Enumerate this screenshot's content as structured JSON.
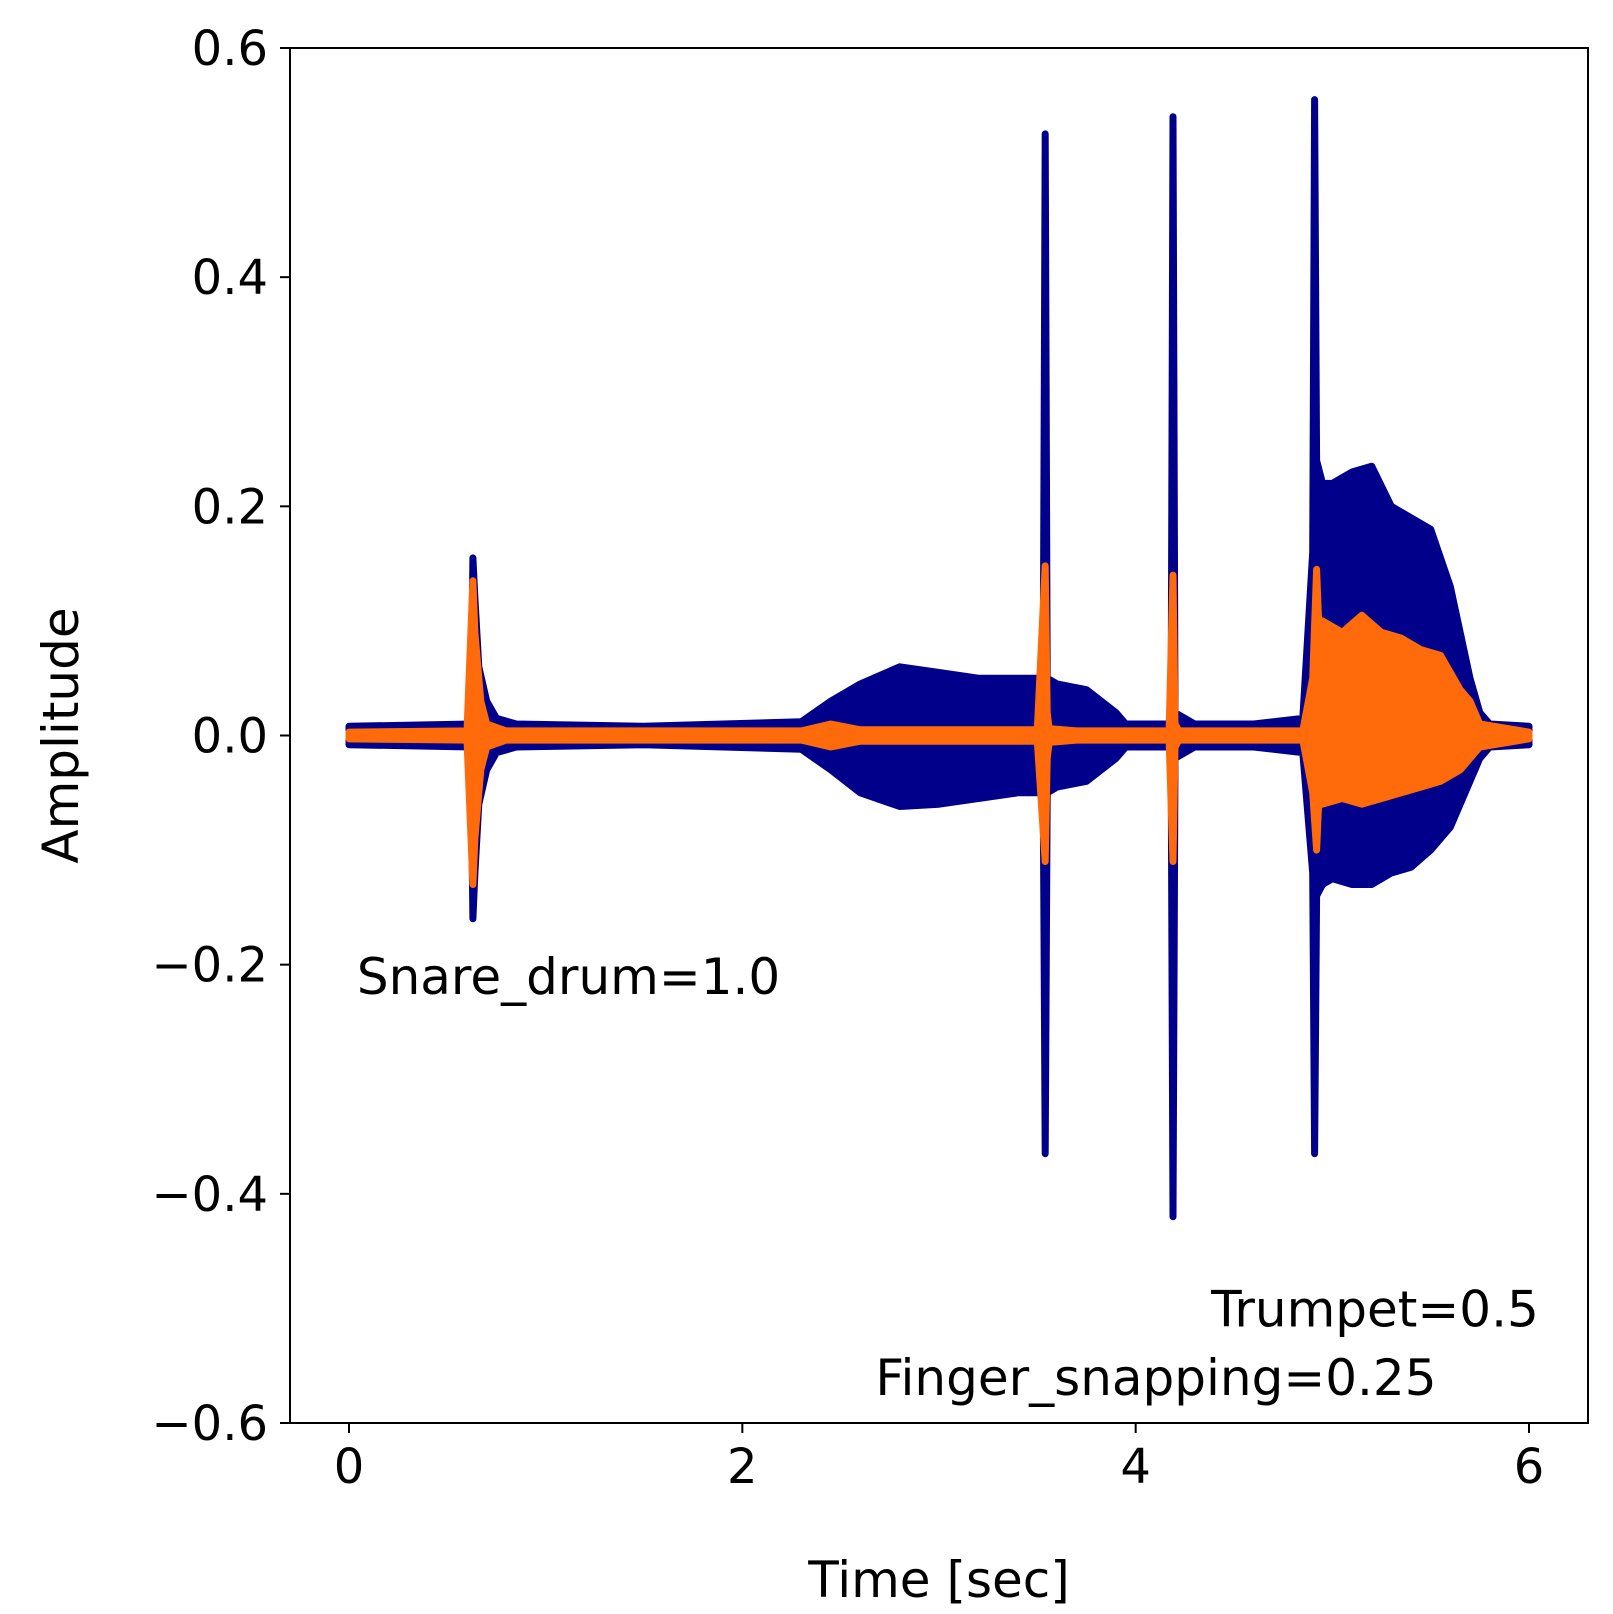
{
  "chart_data": {
    "type": "line",
    "title": "",
    "xlabel": "Time [sec]",
    "ylabel": "Amplitude",
    "xlim": [
      -0.3,
      6.3
    ],
    "ylim": [
      -0.6,
      0.6
    ],
    "xticks": [
      0,
      2,
      4,
      6
    ],
    "yticks": [
      0.6,
      0.4,
      0.2,
      0.0,
      -0.2,
      -0.4,
      -0.6
    ],
    "xtick_labels": [
      "0",
      "2",
      "4",
      "6"
    ],
    "ytick_labels": [
      "0.6",
      "0.4",
      "0.2",
      "0.0",
      "−0.2",
      "−0.4",
      "−0.6"
    ],
    "grid": false,
    "series": [
      {
        "color": "#00008b",
        "envelope": {
          "t": [
            0.0,
            0.62,
            0.63,
            0.64,
            0.66,
            0.7,
            0.75,
            0.85,
            1.5,
            2.3,
            2.45,
            2.6,
            2.8,
            3.0,
            3.2,
            3.4,
            3.5,
            3.53,
            3.54,
            3.55,
            3.6,
            3.75,
            3.9,
            3.95,
            4.1,
            4.18,
            4.19,
            4.2,
            4.3,
            4.6,
            4.85,
            4.9,
            4.91,
            4.92,
            4.95,
            5.0,
            5.1,
            5.2,
            5.3,
            5.4,
            5.5,
            5.6,
            5.7,
            5.75,
            5.8,
            6.0
          ],
          "upper": [
            0.008,
            0.01,
            0.155,
            0.12,
            0.06,
            0.03,
            0.015,
            0.01,
            0.008,
            0.012,
            0.03,
            0.045,
            0.06,
            0.055,
            0.05,
            0.05,
            0.05,
            0.045,
            0.525,
            0.05,
            0.045,
            0.04,
            0.02,
            0.01,
            0.01,
            0.01,
            0.54,
            0.02,
            0.01,
            0.01,
            0.015,
            0.16,
            0.555,
            0.24,
            0.22,
            0.22,
            0.23,
            0.235,
            0.2,
            0.19,
            0.18,
            0.13,
            0.05,
            0.02,
            0.01,
            0.008
          ],
          "lower": [
            -0.008,
            -0.01,
            -0.16,
            -0.12,
            -0.06,
            -0.03,
            -0.015,
            -0.01,
            -0.008,
            -0.012,
            -0.03,
            -0.05,
            -0.062,
            -0.06,
            -0.055,
            -0.05,
            -0.05,
            -0.045,
            -0.365,
            -0.05,
            -0.045,
            -0.04,
            -0.02,
            -0.01,
            -0.01,
            -0.01,
            -0.42,
            -0.02,
            -0.01,
            -0.01,
            -0.015,
            -0.12,
            -0.365,
            -0.14,
            -0.13,
            -0.125,
            -0.13,
            -0.13,
            -0.12,
            -0.115,
            -0.1,
            -0.08,
            -0.04,
            -0.02,
            -0.01,
            -0.008
          ]
        }
      },
      {
        "color": "#ff6a0a",
        "envelope": {
          "t": [
            0.0,
            0.6,
            0.63,
            0.64,
            0.67,
            0.7,
            0.8,
            2.3,
            2.45,
            2.6,
            3.5,
            3.54,
            3.55,
            3.56,
            3.7,
            4.17,
            4.19,
            4.2,
            4.22,
            4.85,
            4.9,
            4.92,
            4.93,
            4.95,
            5.05,
            5.15,
            5.25,
            5.35,
            5.45,
            5.55,
            5.65,
            5.7,
            5.75,
            6.0
          ],
          "upper": [
            0.003,
            0.004,
            0.135,
            0.09,
            0.03,
            0.01,
            0.004,
            0.004,
            0.01,
            0.005,
            0.005,
            0.148,
            0.02,
            0.006,
            0.004,
            0.004,
            0.14,
            0.01,
            0.004,
            0.004,
            0.05,
            0.145,
            0.1,
            0.1,
            0.09,
            0.105,
            0.09,
            0.085,
            0.075,
            0.07,
            0.04,
            0.03,
            0.01,
            0.003
          ],
          "lower": [
            -0.003,
            -0.004,
            -0.13,
            -0.09,
            -0.03,
            -0.01,
            -0.004,
            -0.004,
            -0.01,
            -0.005,
            -0.005,
            -0.11,
            -0.02,
            -0.006,
            -0.004,
            -0.004,
            -0.11,
            -0.01,
            -0.004,
            -0.004,
            -0.05,
            -0.1,
            -0.06,
            -0.06,
            -0.055,
            -0.06,
            -0.055,
            -0.05,
            -0.045,
            -0.04,
            -0.03,
            -0.02,
            -0.01,
            -0.003
          ]
        }
      }
    ],
    "annotations": [
      {
        "text": "Snare_drum=1.0",
        "x": 0.04,
        "y": -0.21,
        "anchor": "start"
      },
      {
        "text": "Trumpet=0.5",
        "x": 6.05,
        "y": -0.5,
        "anchor": "end"
      },
      {
        "text": "Finger_snapping=0.25",
        "x": 5.53,
        "y": -0.56,
        "anchor": "end"
      }
    ]
  }
}
